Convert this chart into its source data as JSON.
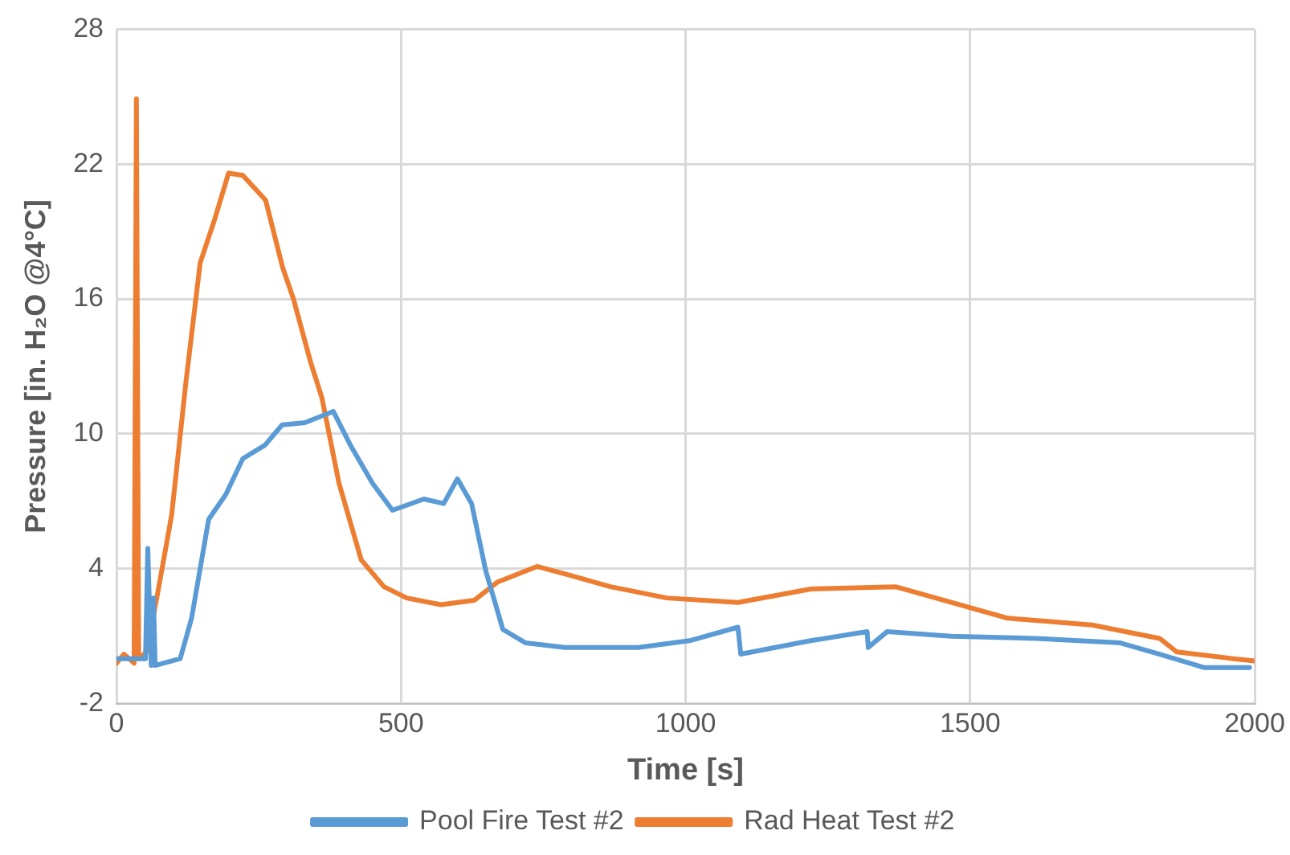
{
  "chart_data": {
    "type": "line",
    "xlabel": "Time [s]",
    "ylabel": "Pressure [in. H₂O @4°C]",
    "xlim": [
      0,
      2000
    ],
    "xticks": [
      0,
      500,
      1000,
      1500,
      2000
    ],
    "ylim": [
      -2,
      28
    ],
    "yticks": [
      -2,
      4,
      10,
      16,
      22,
      28
    ],
    "grid": true,
    "legend": "bottom",
    "marker": "none",
    "line_style": "solid",
    "series": [
      {
        "name": "Pool Fire Test #2",
        "color": "#5b9bd5",
        "x": [
          0,
          51,
          55,
          61,
          65,
          68,
          112,
          132,
          162,
          192,
          222,
          261,
          291,
          331,
          381,
          411,
          450,
          485,
          540,
          575,
          599,
          624,
          649,
          679,
          719,
          788,
          917,
          1007,
          1092,
          1097,
          1220,
          1319,
          1321,
          1354,
          1467,
          1616,
          1764,
          1833,
          1912,
          1991
        ],
        "values": [
          0,
          0,
          4.9,
          -0.3,
          2.7,
          -0.3,
          0,
          1.8,
          6.2,
          7.3,
          8.9,
          9.5,
          10.4,
          10.5,
          11.0,
          9.5,
          7.8,
          6.6,
          7.1,
          6.9,
          8.0,
          6.9,
          3.9,
          1.3,
          0.7,
          0.5,
          0.5,
          0.8,
          1.4,
          0.2,
          0.8,
          1.2,
          0.5,
          1.2,
          1.0,
          0.9,
          0.7,
          0.2,
          -0.4,
          -0.4
        ]
      },
      {
        "name": "Rad Heat Test #2",
        "color": "#ed7d31",
        "x": [
          0,
          13,
          31,
          35,
          39,
          53,
          73,
          97,
          122,
          147,
          172,
          197,
          222,
          262,
          292,
          311,
          341,
          361,
          391,
          430,
          470,
          510,
          570,
          629,
          669,
          739,
          798,
          868,
          967,
          1092,
          1220,
          1369,
          1467,
          1566,
          1714,
          1833,
          1863,
          1962,
          2000
        ],
        "values": [
          -0.2,
          0.2,
          -0.2,
          24.9,
          0,
          0.3,
          3.0,
          6.4,
          12.3,
          17.6,
          19.5,
          21.6,
          21.5,
          20.4,
          17.4,
          16.0,
          13.2,
          11.6,
          7.8,
          4.4,
          3.2,
          2.7,
          2.4,
          2.6,
          3.4,
          4.1,
          3.7,
          3.2,
          2.7,
          2.5,
          3.1,
          3.2,
          2.5,
          1.8,
          1.5,
          0.9,
          0.3,
          0,
          -0.1
        ]
      }
    ]
  }
}
